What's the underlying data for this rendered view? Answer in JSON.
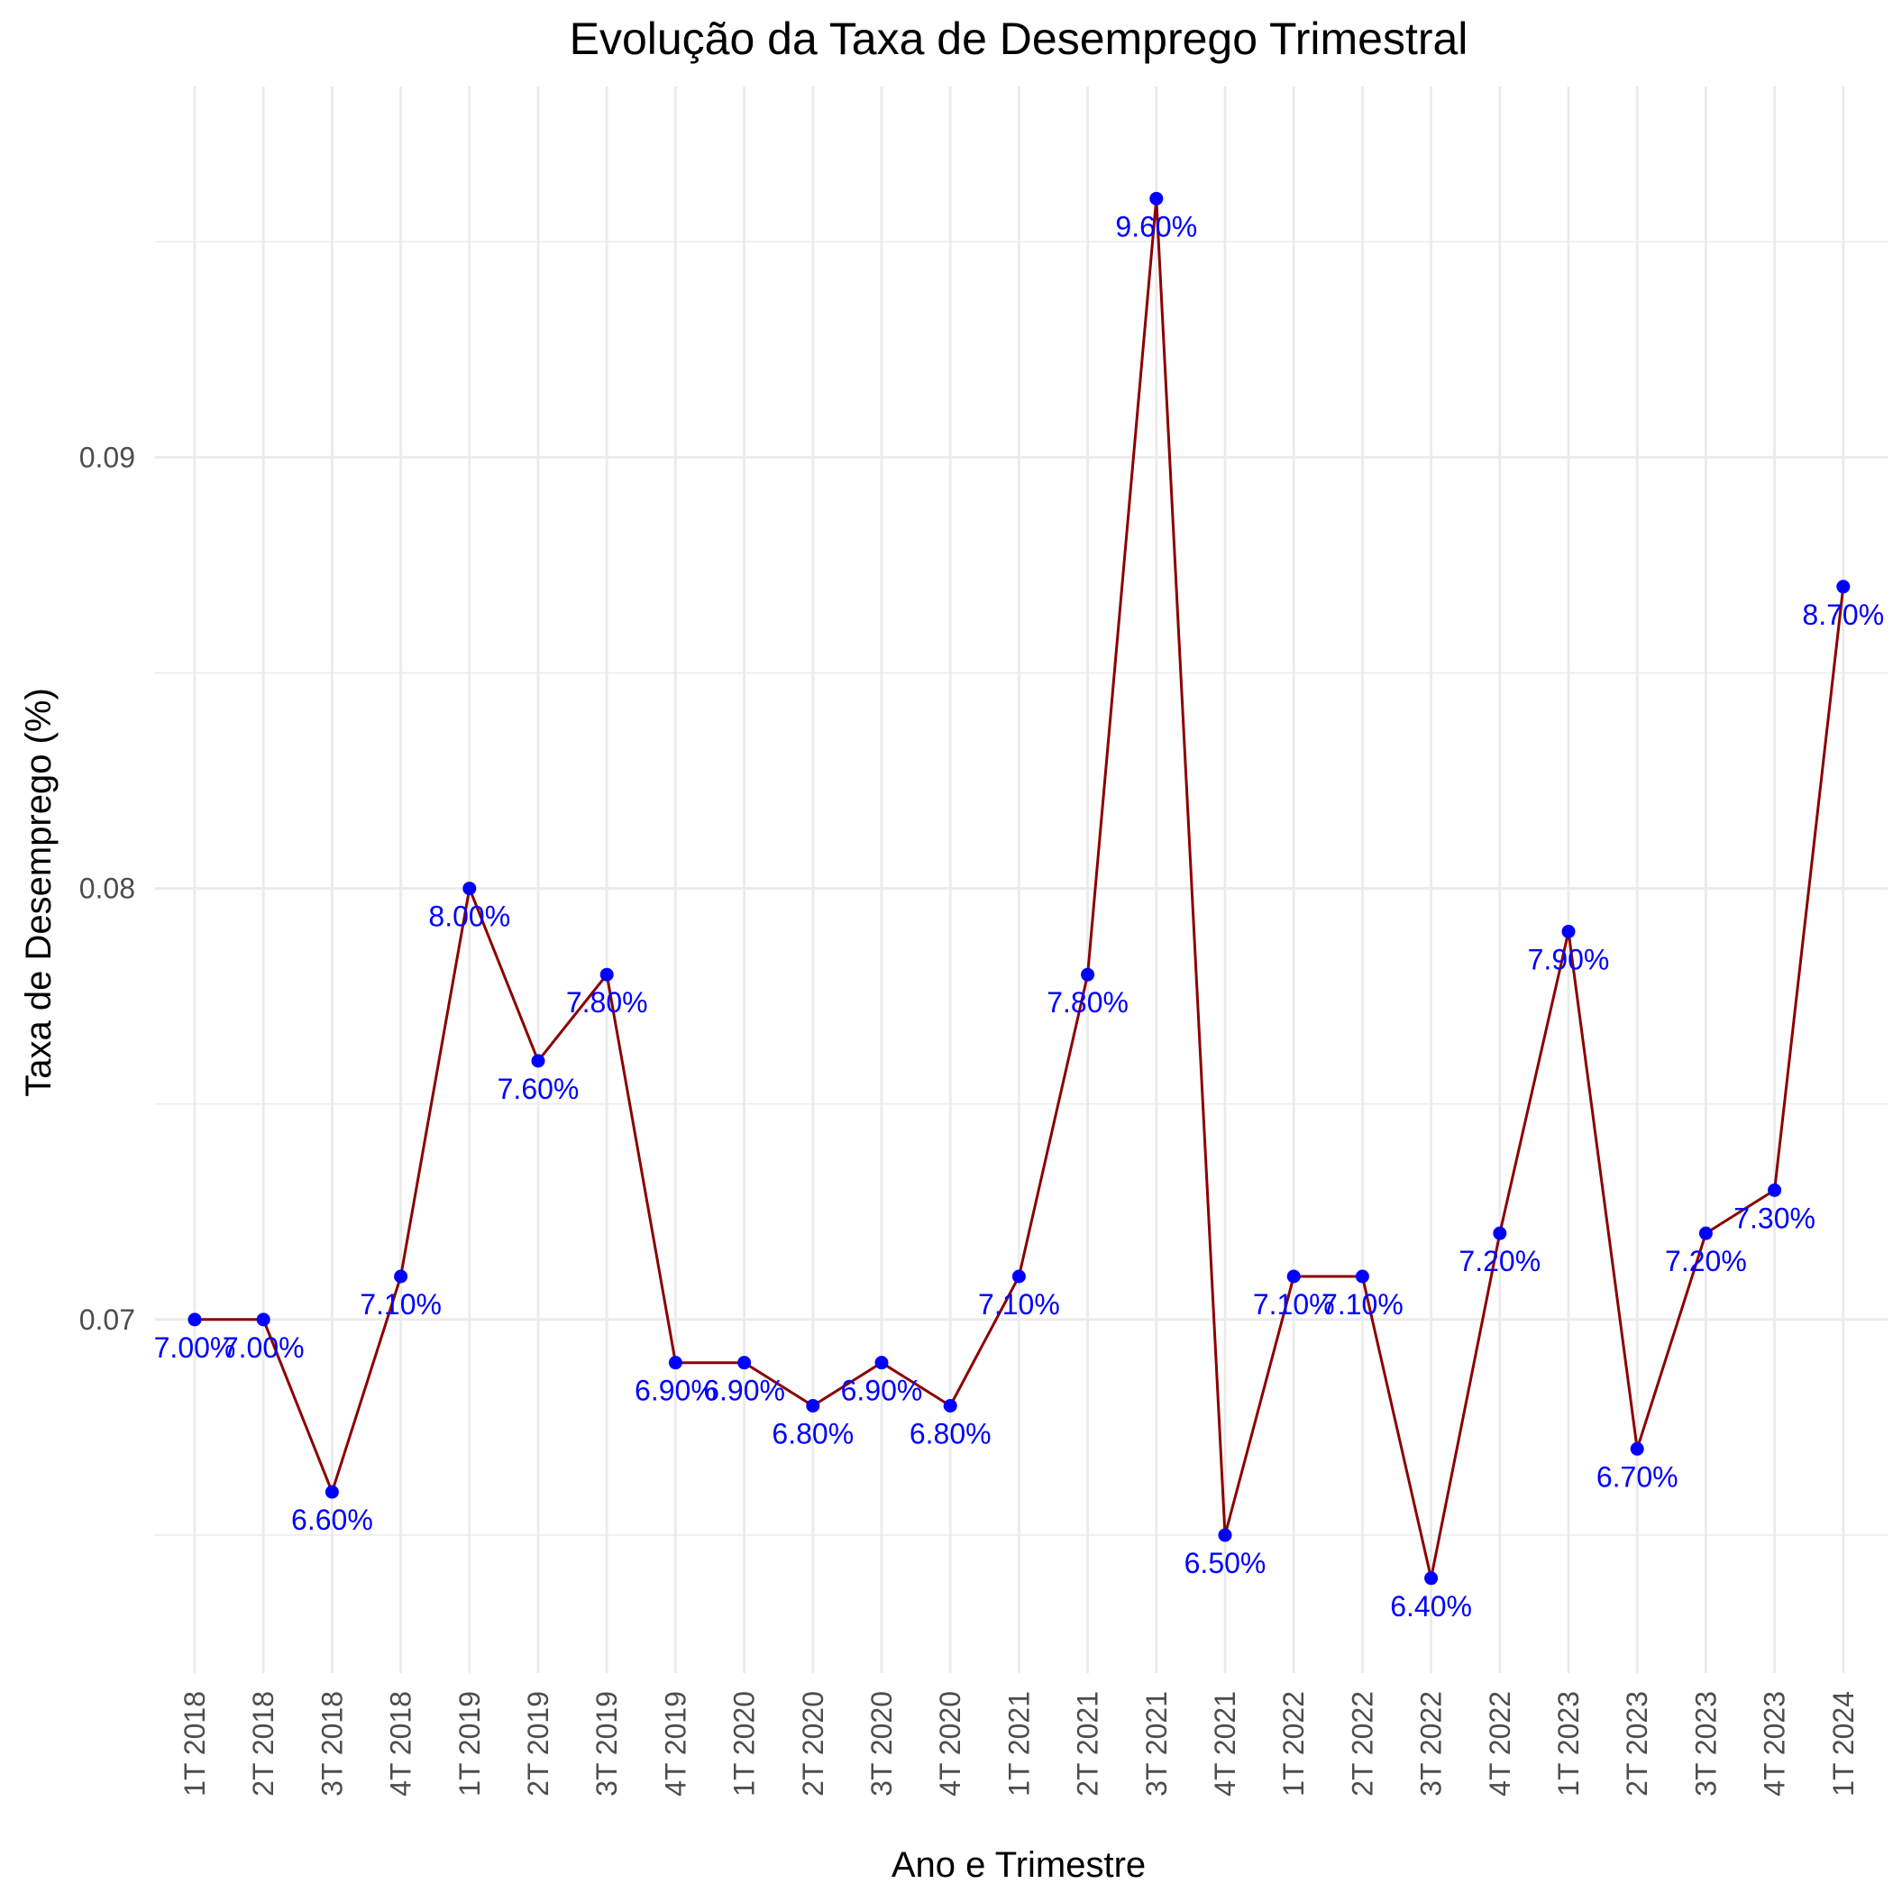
{
  "chart_data": {
    "type": "line",
    "title": "Evolução da Taxa de Desemprego Trimestral",
    "xlabel": "Ano e Trimestre",
    "ylabel": "Taxa de Desemprego (%)",
    "categories": [
      "1T 2018",
      "2T 2018",
      "3T 2018",
      "4T 2018",
      "1T 2019",
      "2T 2019",
      "3T 2019",
      "4T 2019",
      "1T 2020",
      "2T 2020",
      "3T 2020",
      "4T 2020",
      "1T 2021",
      "2T 2021",
      "3T 2021",
      "4T 2021",
      "1T 2022",
      "2T 2022",
      "3T 2022",
      "4T 2022",
      "1T 2023",
      "2T 2023",
      "3T 2023",
      "4T 2023",
      "1T 2024"
    ],
    "series": [
      {
        "values": [
          0.07,
          0.07,
          0.066,
          0.071,
          0.08,
          0.076,
          0.078,
          0.069,
          0.069,
          0.068,
          0.069,
          0.068,
          0.071,
          0.078,
          0.096,
          0.065,
          0.071,
          0.071,
          0.064,
          0.072,
          0.079,
          0.067,
          0.072,
          0.073,
          0.087
        ],
        "labels": [
          "7.00%",
          "7.00%",
          "6.60%",
          "7.10%",
          "8.00%",
          "7.60%",
          "7.80%",
          "6.90%",
          "6.90%",
          "6.80%",
          "6.90%",
          "6.80%",
          "7.10%",
          "7.80%",
          "9.60%",
          "6.50%",
          "7.10%",
          "7.10%",
          "6.40%",
          "7.20%",
          "7.90%",
          "6.70%",
          "7.20%",
          "7.30%",
          "8.70%"
        ]
      }
    ],
    "yticks": [
      0.07,
      0.08,
      0.09
    ],
    "ytick_labels": [
      "0.07",
      "0.08",
      "0.09"
    ],
    "ylim": [
      0.0618,
      0.0986
    ],
    "grid": true,
    "line_color": "#8b0000",
    "point_color": "#0000ff",
    "label_color": "#0000ff"
  }
}
